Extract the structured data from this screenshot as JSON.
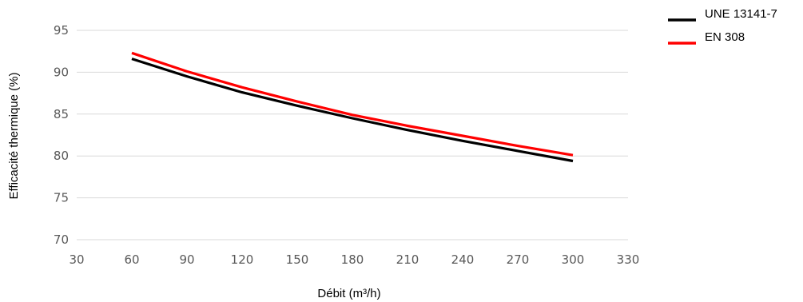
{
  "chart_data": {
    "type": "line",
    "xlabel": "Débit  (m³/h)",
    "ylabel": "Efficacité thermique (%)",
    "xlim": [
      30,
      330
    ],
    "ylim": [
      70,
      95
    ],
    "xticks": [
      30,
      60,
      90,
      120,
      150,
      180,
      210,
      240,
      270,
      300,
      330
    ],
    "yticks": [
      70,
      75,
      80,
      85,
      90,
      95
    ],
    "grid": "horizontal",
    "legend_position": "top-right",
    "series": [
      {
        "name": "UNE 13141-7",
        "color": "#000000",
        "x": [
          60,
          90,
          120,
          150,
          180,
          210,
          240,
          270,
          300
        ],
        "y": [
          91.6,
          89.5,
          87.6,
          86.0,
          84.5,
          83.1,
          81.8,
          80.6,
          79.4
        ]
      },
      {
        "name": "EN 308",
        "color": "#ff0000",
        "x": [
          60,
          90,
          120,
          150,
          180,
          210,
          240,
          270,
          300
        ],
        "y": [
          92.3,
          90.1,
          88.2,
          86.5,
          84.9,
          83.6,
          82.4,
          81.2,
          80.1
        ]
      }
    ]
  }
}
